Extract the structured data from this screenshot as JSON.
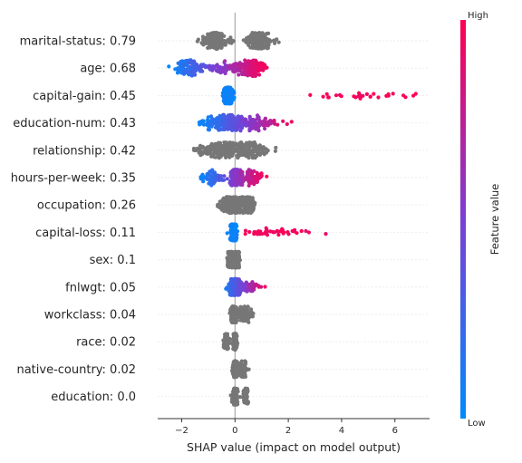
{
  "chart_data": {
    "type": "scatter",
    "subtype": "shap-beeswarm",
    "title": "",
    "xlabel": "SHAP value (impact on model output)",
    "xlim": [
      -2.9,
      7.3
    ],
    "xticks": [
      -2,
      0,
      2,
      4,
      6
    ],
    "xtick_labels": [
      "−2",
      "0",
      "2",
      "4",
      "6"
    ],
    "zero_line": 0,
    "grid": false,
    "colorbar": {
      "title": "Feature value",
      "high_label": "High",
      "low_label": "Low",
      "low_color": "#008bfb",
      "high_color": "#ff0052",
      "placement": "right"
    },
    "neutral_color": "#777777",
    "features": [
      {
        "name": "marital-status",
        "label": "marital-status: 0.79",
        "importance": 0.79,
        "colored": false,
        "min": -1.45,
        "max": 1.7,
        "modes": [
          [
            -0.75,
            0.25,
            0.55
          ],
          [
            0.9,
            0.25,
            0.45
          ]
        ]
      },
      {
        "name": "age",
        "label": "age: 0.68",
        "importance": 0.68,
        "colored": true,
        "min": -2.5,
        "max": 1.2,
        "modes": [
          [
            -1.8,
            0.3,
            0.3
          ],
          [
            -0.4,
            0.45,
            0.25
          ],
          [
            0.65,
            0.25,
            0.45
          ]
        ]
      },
      {
        "name": "capital-gain",
        "label": "capital-gain: 0.45",
        "importance": 0.45,
        "colored": true,
        "min": -1.8,
        "max": 7.0,
        "modes": [
          [
            -0.25,
            0.08,
            0.9
          ],
          [
            5.0,
            1.3,
            0.1
          ]
        ]
      },
      {
        "name": "education-num",
        "label": "education-num: 0.43",
        "importance": 0.43,
        "colored": true,
        "min": -1.35,
        "max": 2.2,
        "modes": [
          [
            -0.6,
            0.35,
            0.35
          ],
          [
            0.0,
            0.15,
            0.35
          ],
          [
            0.8,
            0.4,
            0.3
          ]
        ]
      },
      {
        "name": "relationship",
        "label": "relationship: 0.42",
        "importance": 0.42,
        "colored": false,
        "min": -1.65,
        "max": 1.55,
        "modes": [
          [
            -0.75,
            0.4,
            0.4
          ],
          [
            0.35,
            0.5,
            0.6
          ]
        ]
      },
      {
        "name": "hours-per-week",
        "label": "hours-per-week: 0.35",
        "importance": 0.35,
        "colored": true,
        "min": -1.35,
        "max": 1.2,
        "modes": [
          [
            -0.9,
            0.25,
            0.2
          ],
          [
            0.0,
            0.1,
            0.55
          ],
          [
            0.6,
            0.25,
            0.25
          ]
        ]
      },
      {
        "name": "occupation",
        "label": "occupation: 0.26",
        "importance": 0.26,
        "colored": false,
        "min": -0.7,
        "max": 0.75,
        "modes": [
          [
            -0.2,
            0.2,
            0.6
          ],
          [
            0.4,
            0.2,
            0.4
          ]
        ]
      },
      {
        "name": "capital-loss",
        "label": "capital-loss: 0.11",
        "importance": 0.11,
        "colored": true,
        "min": -1.5,
        "max": 3.5,
        "modes": [
          [
            -0.05,
            0.05,
            0.85
          ],
          [
            1.5,
            0.8,
            0.15
          ]
        ]
      },
      {
        "name": "sex",
        "label": "sex: 0.1",
        "importance": 0.1,
        "colored": false,
        "min": -0.35,
        "max": 0.2,
        "modes": [
          [
            -0.15,
            0.08,
            0.3
          ],
          [
            0.05,
            0.05,
            0.7
          ]
        ]
      },
      {
        "name": "fnlwgt",
        "label": "fnlwgt: 0.05",
        "importance": 0.05,
        "colored": true,
        "min": -0.5,
        "max": 1.2,
        "modes": [
          [
            0.0,
            0.1,
            0.85
          ],
          [
            0.6,
            0.25,
            0.15
          ]
        ]
      },
      {
        "name": "workclass",
        "label": "workclass: 0.04",
        "importance": 0.04,
        "colored": false,
        "min": -0.2,
        "max": 0.7,
        "modes": [
          [
            -0.05,
            0.05,
            0.75
          ],
          [
            0.35,
            0.15,
            0.25
          ]
        ]
      },
      {
        "name": "race",
        "label": "race: 0.02",
        "importance": 0.02,
        "colored": false,
        "min": -0.45,
        "max": 0.1,
        "modes": [
          [
            0.0,
            0.03,
            0.85
          ],
          [
            -0.3,
            0.08,
            0.15
          ]
        ]
      },
      {
        "name": "native-country",
        "label": "native-country: 0.02",
        "importance": 0.02,
        "colored": false,
        "min": -0.45,
        "max": 0.7,
        "modes": [
          [
            0.0,
            0.04,
            0.8
          ],
          [
            0.25,
            0.12,
            0.2
          ]
        ]
      },
      {
        "name": "education",
        "label": "education: 0.0",
        "importance": 0.0,
        "colored": false,
        "min": -0.2,
        "max": 0.5,
        "modes": [
          [
            0.0,
            0.04,
            0.8
          ],
          [
            0.4,
            0.05,
            0.2
          ]
        ]
      }
    ]
  }
}
